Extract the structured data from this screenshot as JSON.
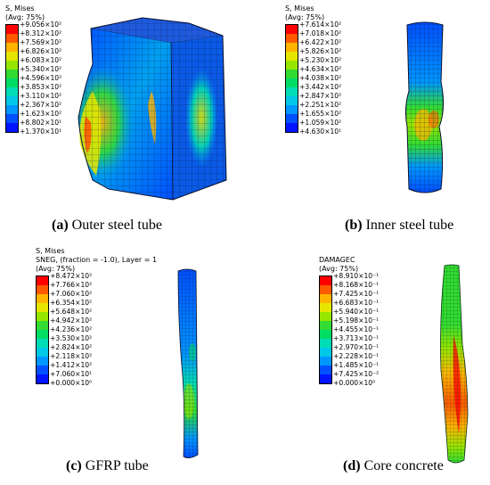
{
  "panels": [
    {
      "id": "a",
      "legend_lines": [
        "S, Mises",
        "(Avg: 75%)"
      ],
      "legend_values": [
        "+9.056×10²",
        "+8.312×10²",
        "+7.569×10²",
        "+6.826×10²",
        "+6.083×10²",
        "+5.340×10²",
        "+4.596×10²",
        "+3.853×10²",
        "+3.110×10²",
        "+2.367×10²",
        "+1.623×10²",
        "+8.802×10¹",
        "+1.370×10¹"
      ],
      "caption_letter": "(a)",
      "caption_text": "Outer steel tube"
    },
    {
      "id": "b",
      "legend_lines": [
        "S, Mises",
        "(Avg: 75%)"
      ],
      "legend_values": [
        "+7.614×10²",
        "+7.018×10²",
        "+6.422×10²",
        "+5.826×10²",
        "+5.230×10²",
        "+4.634×10²",
        "+4.038×10²",
        "+3.442×10²",
        "+2.847×10²",
        "+2.251×10²",
        "+1.655×10²",
        "+1.059×10²",
        "+4.630×10¹"
      ],
      "caption_letter": "(b)",
      "caption_text": "Inner steel tube"
    },
    {
      "id": "c",
      "legend_lines": [
        "S, Mises",
        "SNEG, (fraction = -1.0), Layer = 1",
        "(Avg: 75%)"
      ],
      "legend_values": [
        "+8.472×10²",
        "+7.766×10²",
        "+7.060×10²",
        "+6.354×10²",
        "+5.648×10²",
        "+4.942×10²",
        "+4.236×10²",
        "+3.530×10²",
        "+2.824×10²",
        "+2.118×10²",
        "+1.412×10²",
        "+7.060×10¹",
        "+0.000×10⁰"
      ],
      "caption_letter": "(c)",
      "caption_text": "GFRP tube"
    },
    {
      "id": "d",
      "legend_lines": [
        "DAMAGEC",
        "(Avg: 75%)"
      ],
      "legend_values": [
        "+8.910×10⁻¹",
        "+8.168×10⁻¹",
        "+7.425×10⁻¹",
        "+6.683×10⁻¹",
        "+5.940×10⁻¹",
        "+5.198×10⁻¹",
        "+4.455×10⁻¹",
        "+3.713×10⁻¹",
        "+2.970×10⁻¹",
        "+2.228×10⁻¹",
        "+1.485×10⁻¹",
        "+7.425×10⁻²",
        "+0.000×10⁰"
      ],
      "caption_letter": "(d)",
      "caption_text": "Core concrete"
    }
  ],
  "colors": {
    "contour_scale": [
      "#ff0000",
      "#ff5a00",
      "#ffb400",
      "#e6e600",
      "#96e600",
      "#32dc32",
      "#00dc64",
      "#00dcb4",
      "#00c8e6",
      "#0096ff",
      "#0050ff",
      "#0014ff"
    ]
  }
}
